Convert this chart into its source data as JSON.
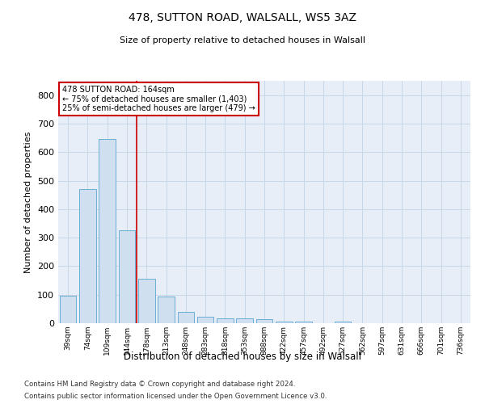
{
  "title1": "478, SUTTON ROAD, WALSALL, WS5 3AZ",
  "title2": "Size of property relative to detached houses in Walsall",
  "xlabel": "Distribution of detached houses by size in Walsall",
  "ylabel": "Number of detached properties",
  "categories": [
    "39sqm",
    "74sqm",
    "109sqm",
    "144sqm",
    "178sqm",
    "213sqm",
    "248sqm",
    "283sqm",
    "318sqm",
    "353sqm",
    "388sqm",
    "422sqm",
    "457sqm",
    "492sqm",
    "527sqm",
    "562sqm",
    "597sqm",
    "631sqm",
    "666sqm",
    "701sqm",
    "736sqm"
  ],
  "values": [
    95,
    470,
    645,
    325,
    155,
    93,
    40,
    22,
    18,
    18,
    13,
    7,
    5,
    0,
    7,
    0,
    0,
    0,
    0,
    0,
    0
  ],
  "bar_color": "#cfdff0",
  "bar_edge_color": "#6baed6",
  "grid_color": "#c8d8e8",
  "background_color": "#e8eef8",
  "annotation_text": "478 SUTTON ROAD: 164sqm\n← 75% of detached houses are smaller (1,403)\n25% of semi-detached houses are larger (479) →",
  "annotation_box_color": "#ffffff",
  "annotation_edge_color": "#cc0000",
  "red_line_idx": 3.5,
  "footnote1": "Contains HM Land Registry data © Crown copyright and database right 2024.",
  "footnote2": "Contains public sector information licensed under the Open Government Licence v3.0.",
  "ylim": [
    0,
    850
  ],
  "yticks": [
    0,
    100,
    200,
    300,
    400,
    500,
    600,
    700,
    800
  ]
}
